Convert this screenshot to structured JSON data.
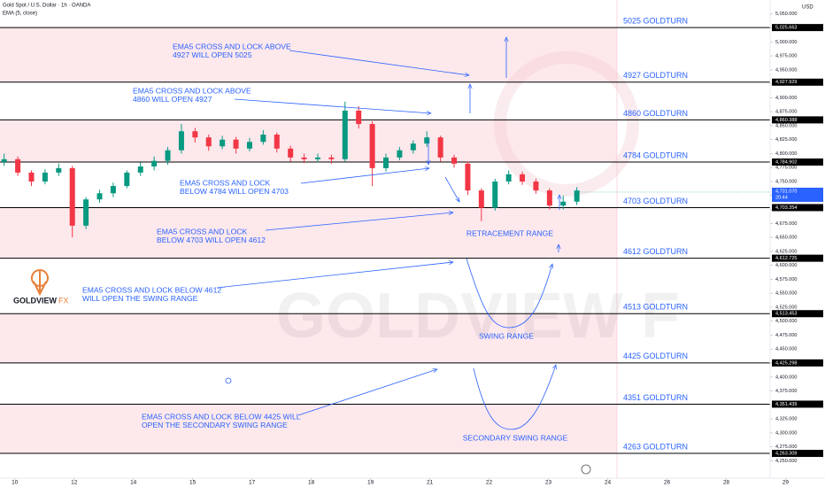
{
  "chart_data": {
    "type": "candlestick",
    "title": "Gold Spot / U.S. Dollar · 1h · OANDA",
    "indicator": "EMA (5, close)",
    "currency": "USD",
    "up_color": "#089981",
    "down_color": "#f23645",
    "zone_color": "#fde8ec",
    "annotation_color": "#2962ff",
    "xlim": [
      -0.25,
      12.74
    ],
    "ylim": [
      4219,
      5075
    ],
    "xticks": [
      {
        "value": 0,
        "label": "10"
      },
      {
        "value": 1,
        "label": "12"
      },
      {
        "value": 2,
        "label": "14"
      },
      {
        "value": 3,
        "label": "15"
      },
      {
        "value": 4,
        "label": "17"
      },
      {
        "value": 5,
        "label": "18"
      },
      {
        "value": 6,
        "label": "19"
      },
      {
        "value": 7,
        "label": "21"
      },
      {
        "value": 8,
        "label": "22"
      },
      {
        "value": 9,
        "label": "23"
      },
      {
        "value": 10,
        "label": "24"
      },
      {
        "value": 11,
        "label": "26"
      },
      {
        "value": 12,
        "label": "28"
      },
      {
        "value": 13,
        "label": "29"
      }
    ],
    "yticks": [
      {
        "value": 4250,
        "label": "4,250.000"
      },
      {
        "value": 4275,
        "label": "4,275.000"
      },
      {
        "value": 4300,
        "label": "4,300.000"
      },
      {
        "value": 4325,
        "label": "4,325.000"
      },
      {
        "value": 4350,
        "label": "4,350.000"
      },
      {
        "value": 4375,
        "label": "4,375.000"
      },
      {
        "value": 4400,
        "label": "4,400.000"
      },
      {
        "value": 4425,
        "label": "4,425.000"
      },
      {
        "value": 4450,
        "label": "4,450.000"
      },
      {
        "value": 4475,
        "label": "4,475.000"
      },
      {
        "value": 4500,
        "label": "4,500.000"
      },
      {
        "value": 4525,
        "label": "4,525.000"
      },
      {
        "value": 4550,
        "label": "4,550.000"
      },
      {
        "value": 4575,
        "label": "4,575.000"
      },
      {
        "value": 4600,
        "label": "4,600.000"
      },
      {
        "value": 4625,
        "label": "4,625.000"
      },
      {
        "value": 4650,
        "label": "4,650.000"
      },
      {
        "value": 4675,
        "label": "4,675.000"
      },
      {
        "value": 4700,
        "label": "4,700.000"
      },
      {
        "value": 4725,
        "label": "4,725.000"
      },
      {
        "value": 4750,
        "label": "4,750.000"
      },
      {
        "value": 4775,
        "label": "4,775.000"
      },
      {
        "value": 4800,
        "label": "4,800.000"
      },
      {
        "value": 4825,
        "label": "4,825.000"
      },
      {
        "value": 4850,
        "label": "4,850.000"
      },
      {
        "value": 4875,
        "label": "4,875.000"
      },
      {
        "value": 4900,
        "label": "4,900.000"
      },
      {
        "value": 4925,
        "label": "4,925.000"
      },
      {
        "value": 4950,
        "label": "4,950.000"
      },
      {
        "value": 4975,
        "label": "4,975.000"
      },
      {
        "value": 5000,
        "label": "5,000.000"
      },
      {
        "value": 5025,
        "label": "5,025.000"
      },
      {
        "value": 5050,
        "label": "5,050.000"
      }
    ],
    "x": [
      -0.18,
      0.05,
      0.28,
      0.51,
      0.74,
      0.97,
      1.2,
      1.43,
      1.66,
      1.89,
      2.12,
      2.35,
      2.58,
      2.81,
      3.04,
      3.27,
      3.5,
      3.73,
      3.96,
      4.19,
      4.42,
      4.65,
      4.88,
      5.11,
      5.34,
      5.57,
      5.8,
      6.03,
      6.26,
      6.49,
      6.72,
      6.95,
      7.18,
      7.41,
      7.64,
      7.87,
      8.1,
      8.33,
      8.56,
      8.79,
      9.02,
      9.25,
      9.48
    ],
    "open": [
      4785,
      4790,
      4766,
      4750,
      4766,
      4774,
      4671,
      4718,
      4729,
      4742,
      4766,
      4777,
      4787,
      4806,
      4840,
      4829,
      4813,
      4825,
      4809,
      4821,
      4834,
      4809,
      4793,
      4790,
      4793,
      4790,
      4877,
      4853,
      4774,
      4793,
      4806,
      4818,
      4829,
      4793,
      4782,
      4734,
      4703,
      4750,
      4763,
      4750,
      4734,
      4707,
      4714
    ],
    "high": [
      4800,
      4795,
      4770,
      4772,
      4782,
      4778,
      4722,
      4735,
      4748,
      4770,
      4784,
      4795,
      4812,
      4853,
      4846,
      4834,
      4832,
      4830,
      4828,
      4842,
      4838,
      4814,
      4800,
      4800,
      4798,
      4893,
      4885,
      4858,
      4800,
      4812,
      4824,
      4840,
      4832,
      4798,
      4786,
      4738,
      4755,
      4770,
      4768,
      4755,
      4738,
      4725,
      4740
    ],
    "low": [
      4778,
      4760,
      4742,
      4745,
      4760,
      4650,
      4665,
      4712,
      4722,
      4738,
      4760,
      4770,
      4780,
      4800,
      4820,
      4805,
      4808,
      4800,
      4804,
      4816,
      4802,
      4786,
      4783,
      4784,
      4782,
      4786,
      4845,
      4742,
      4768,
      4788,
      4800,
      4812,
      4786,
      4775,
      4726,
      4679,
      4698,
      4745,
      4744,
      4728,
      4700,
      4700,
      4708
    ],
    "close": [
      4790,
      4766,
      4750,
      4766,
      4774,
      4671,
      4718,
      4729,
      4742,
      4766,
      4777,
      4787,
      4806,
      4840,
      4829,
      4813,
      4825,
      4809,
      4821,
      4834,
      4809,
      4793,
      4790,
      4793,
      4790,
      4877,
      4853,
      4774,
      4793,
      4806,
      4818,
      4829,
      4793,
      4782,
      4734,
      4703,
      4750,
      4763,
      4750,
      4734,
      4707,
      4714,
      4734
    ],
    "last_price": {
      "value": 4731.07,
      "label": "4,731.070",
      "time": "20:44"
    },
    "levels": [
      {
        "price": 5025.663,
        "price_label": "5,025.663",
        "label": "5025 GOLDTURN"
      },
      {
        "price": 4927.929,
        "price_label": "4,927.929",
        "label": "4927 GOLDTURN"
      },
      {
        "price": 4860.388,
        "price_label": "4,860.388",
        "label": "4860 GOLDTURN"
      },
      {
        "price": 4784.902,
        "price_label": "4,784.902",
        "label": "4784 GOLDTURN"
      },
      {
        "price": 4703.354,
        "price_label": "4,703.354",
        "label": "4703 GOLDTURN"
      },
      {
        "price": 4612.725,
        "price_label": "4,612.725",
        "label": "4612 GOLDTURN"
      },
      {
        "price": 4513.453,
        "price_label": "4,513.453",
        "label": "4513 GOLDTURN"
      },
      {
        "price": 4425.298,
        "price_label": "4,425.298",
        "label": "4425 GOLDTURN"
      },
      {
        "price": 4351.439,
        "price_label": "4,351.439",
        "label": "4351 GOLDTURN"
      },
      {
        "price": 4263.309,
        "price_label": "4,263.309",
        "label": "4263 GOLDTURN"
      }
    ],
    "annotations": [
      [
        "EMA5 CROSS AND LOCK ABOVE",
        "4927 WILL OPEN 5025"
      ],
      [
        "EMA5 CROSS AND LOCK ABOVE",
        "4860  WILL OPEN 4927"
      ],
      [
        "EMA5 CROSS AND LOCK",
        "BELOW 4784 WILL OPEN 4703"
      ],
      [
        "EMA5 CROSS AND LOCK",
        "BELOW 4703 WILL OPEN 4612"
      ],
      [
        "EMA5 CROSS AND LOCK BELOW 4612",
        "WILL OPEN THE SWING RANGE"
      ],
      [
        "EMA5 CROSS AND LOCK BELOW 4425 WILL",
        "OPEN THE SECONDARY SWING RANGE"
      ]
    ],
    "ranges": [
      "RETRACEMENT RANGE",
      "SWING RANGE",
      "SECONDARY SWING RANGE"
    ],
    "logo": {
      "name": "GOLDVIEW",
      "suffix": "FX"
    },
    "watermark": "GOLDVIEW F"
  }
}
